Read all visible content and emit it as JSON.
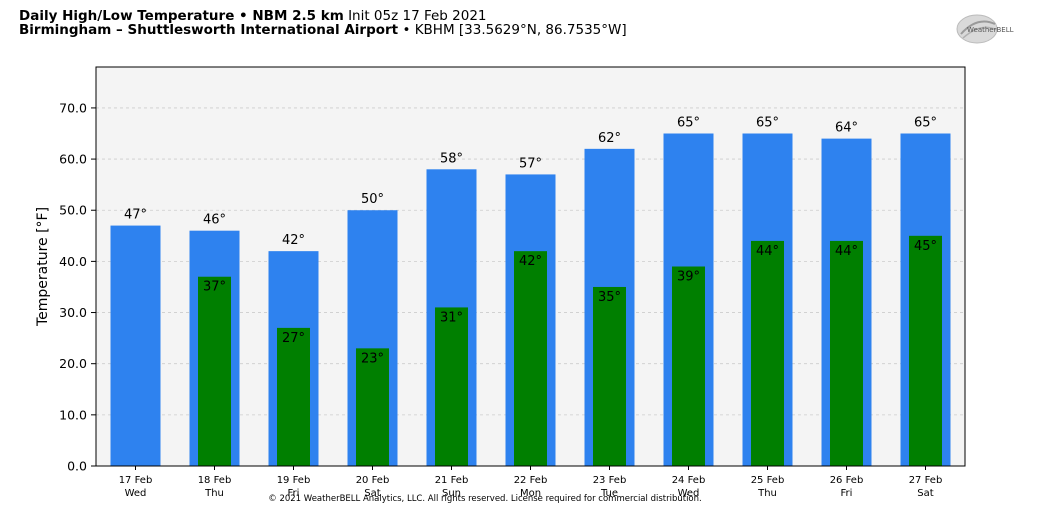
{
  "header": {
    "title_bold": "Daily High/Low Temperature • NBM 2.5 km",
    "init": "Init 05z 17 Feb 2021",
    "location_bold": "Birmingham – Shuttlesworth International Airport",
    "station": "• KBHM [33.5629°N, 86.7535°W]"
  },
  "logo_text": "WeatherBELL",
  "copyright": "© 2021 WeatherBELL Analytics, LLC. All rights reserved. License required for commercial distribution.",
  "colors": {
    "high": "#2e82ef",
    "low": "#007f00",
    "plot_bg": "#f4f4f4"
  },
  "chart_data": {
    "type": "bar",
    "categories": [
      [
        "17 Feb",
        "Wed"
      ],
      [
        "18 Feb",
        "Thu"
      ],
      [
        "19 Feb",
        "Fri"
      ],
      [
        "20 Feb",
        "Sat"
      ],
      [
        "21 Feb",
        "Sun"
      ],
      [
        "22 Feb",
        "Mon"
      ],
      [
        "23 Feb",
        "Tue"
      ],
      [
        "24 Feb",
        "Wed"
      ],
      [
        "25 Feb",
        "Thu"
      ],
      [
        "26 Feb",
        "Fri"
      ],
      [
        "27 Feb",
        "Sat"
      ]
    ],
    "series": [
      {
        "values": [
          47,
          46,
          42,
          50,
          58,
          57,
          62,
          65,
          65,
          64,
          65
        ],
        "labels": [
          "47°",
          "46°",
          "42°",
          "50°",
          "58°",
          "57°",
          "62°",
          "65°",
          "65°",
          "64°",
          "65°"
        ]
      },
      {
        "values": [
          null,
          37,
          27,
          23,
          31,
          42,
          35,
          39,
          44,
          44,
          45
        ],
        "labels": [
          "",
          "37°",
          "27°",
          "23°",
          "31°",
          "42°",
          "35°",
          "39°",
          "44°",
          "44°",
          "45°"
        ]
      }
    ],
    "ylabel": "Temperature [°F]",
    "ylim": [
      0,
      78
    ],
    "yticks": [
      "0.0",
      "10.0",
      "20.0",
      "30.0",
      "40.0",
      "50.0",
      "60.0",
      "70.0"
    ],
    "grid": true
  }
}
